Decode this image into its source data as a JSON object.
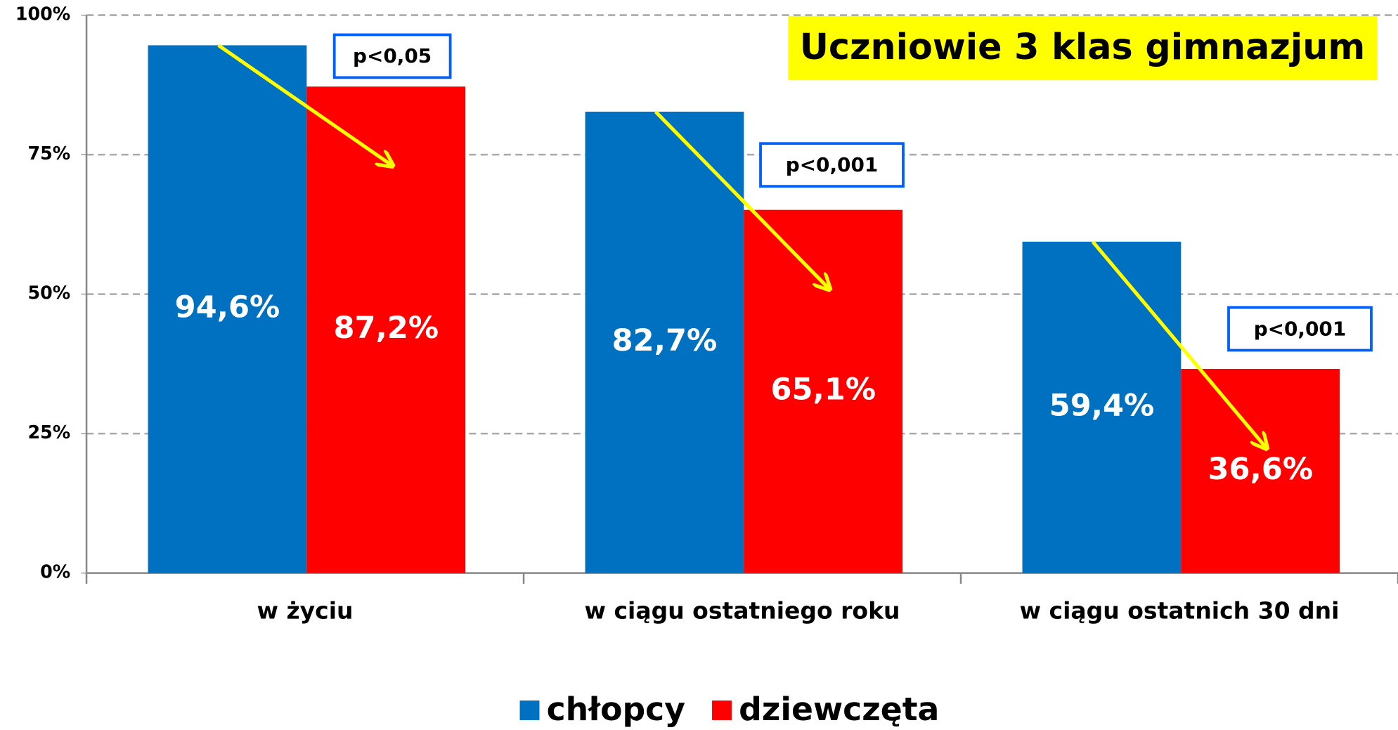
{
  "chart_data": {
    "type": "bar",
    "title": "Uczniowie 3 klas gimnazjum",
    "categories": [
      "w życiu",
      "w ciągu ostatniego roku",
      "w ciągu ostatnich 30 dni"
    ],
    "series": [
      {
        "name": "chłopcy",
        "color": "#0070c0",
        "values": [
          94.6,
          82.7,
          59.4
        ],
        "value_labels": [
          "94,6%",
          "82,7%",
          "59,4%"
        ]
      },
      {
        "name": "dziewczęta",
        "color": "#ff0000",
        "values": [
          87.2,
          65.1,
          36.6
        ],
        "value_labels": [
          "87,2%",
          "65,1%",
          "36,6%"
        ]
      }
    ],
    "annotations": [
      "p<0,05",
      "p<0,001",
      "p<0,001"
    ],
    "ylim": [
      0,
      100
    ],
    "yticks": [
      {
        "value": 0,
        "label": "0%"
      },
      {
        "value": 25,
        "label": "25%"
      },
      {
        "value": 50,
        "label": "50%"
      },
      {
        "value": 75,
        "label": "75%"
      },
      {
        "value": 100,
        "label": "100%"
      }
    ],
    "grid": true,
    "legend": "bottom"
  }
}
